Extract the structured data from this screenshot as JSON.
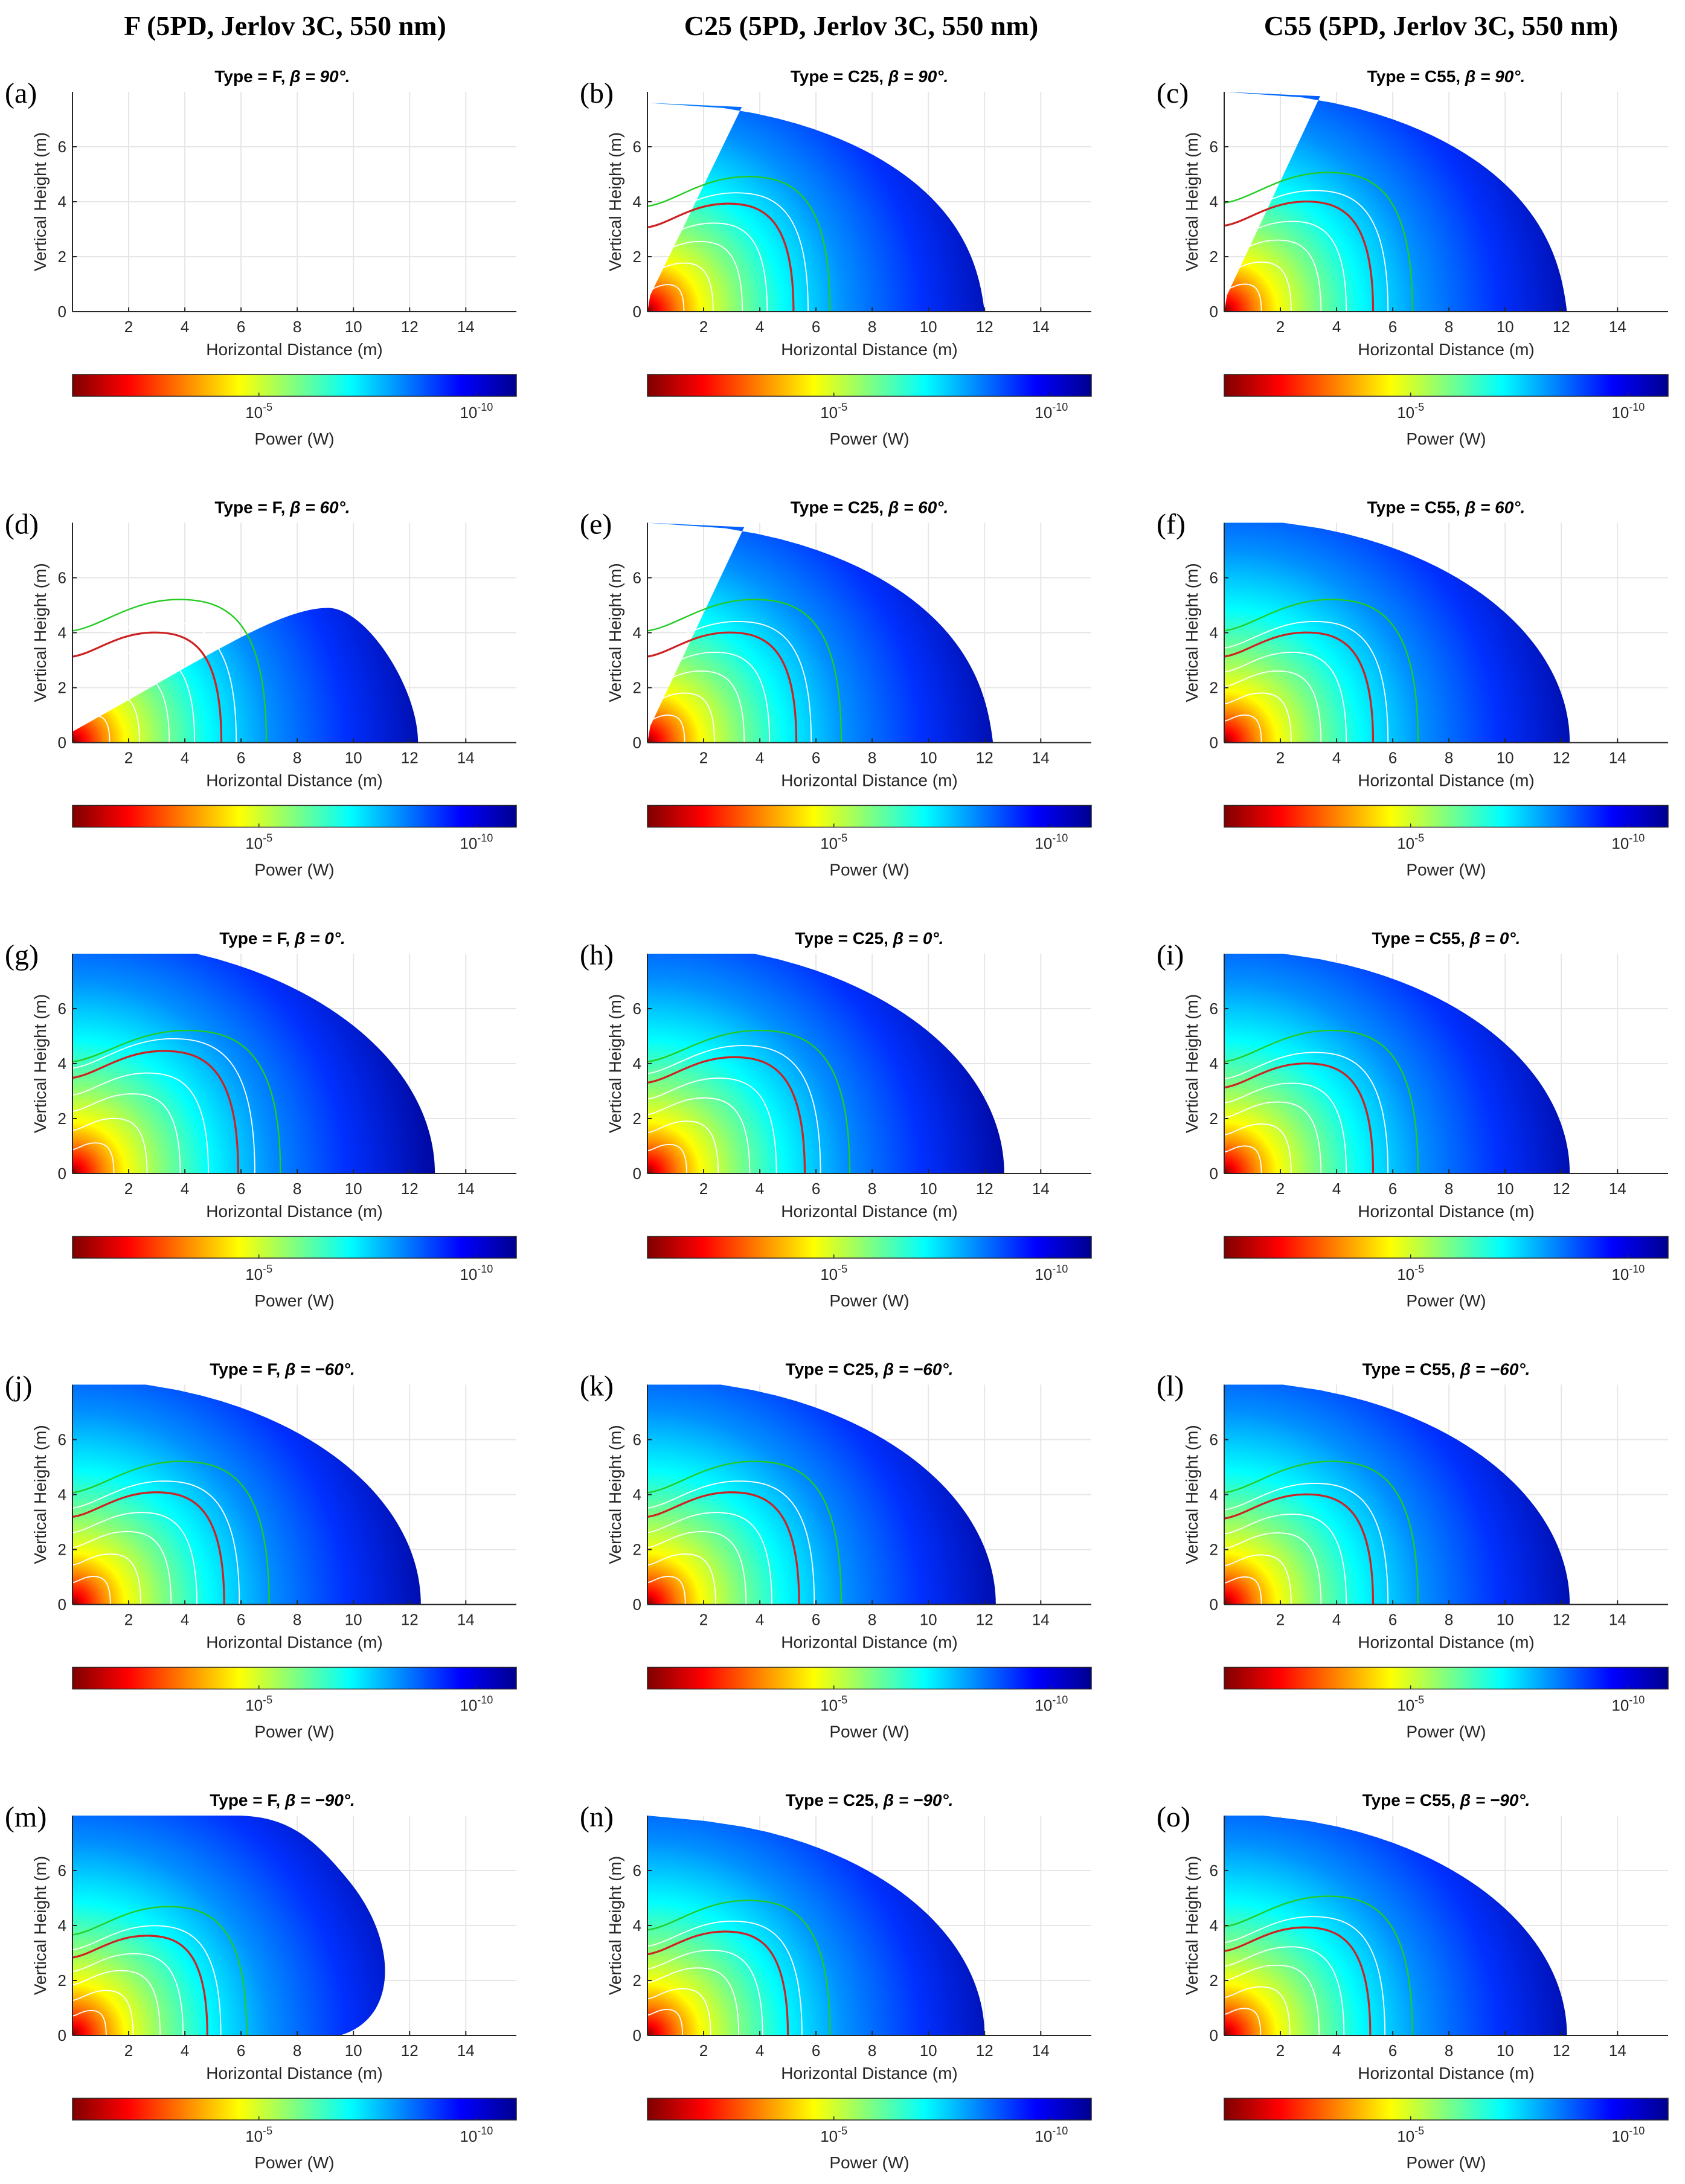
{
  "figure": {
    "columns": [
      {
        "title": "F (5PD, Jerlov 3C, 550 nm)"
      },
      {
        "title": "C25 (5PD, Jerlov 3C, 550 nm)"
      },
      {
        "title": "C55 (5PD, Jerlov 3C, 550 nm)"
      }
    ]
  },
  "colors": {
    "colormap": [
      "#7f0000",
      "#ff0000",
      "#ff8000",
      "#ffff00",
      "#80ff80",
      "#00ffff",
      "#0080ff",
      "#0000ff",
      "#00008f"
    ],
    "contour_green": "#22cc22",
    "contour_red": "#cc2222",
    "contour_white": "#ffffff",
    "grid": "#e6e6e6",
    "axis": "#262626"
  },
  "chart_data": [
    {
      "id": "a",
      "label": "(a)",
      "type": "heatmap",
      "title": "Type = F, β = 90°.",
      "title_prefix": "Type = F, ",
      "title_beta": "β = 90°.",
      "sensor": "F",
      "beta_deg": 90,
      "xlabel": "Horizontal Distance (m)",
      "ylabel": "Vertical Height (m)",
      "xlim": [
        0,
        15.8
      ],
      "ylim": [
        0,
        8
      ],
      "xticks": [
        "2",
        "4",
        "6",
        "8",
        "10",
        "12",
        "14"
      ],
      "yticks": [
        "0",
        "2",
        "4",
        "6"
      ],
      "colorbar_label": "Power (W)",
      "colorbar_ticks": [
        "10",
        "10"
      ],
      "colorbar_exps": [
        "-5",
        "-10"
      ],
      "coverage": "none",
      "reach_m": 0,
      "contours": {
        "green": 0,
        "red": 0
      }
    },
    {
      "id": "b",
      "label": "(b)",
      "type": "heatmap",
      "title": "Type = C25, β = 90°.",
      "title_prefix": "Type = C25, ",
      "title_beta": "β = 90°.",
      "sensor": "C25",
      "beta_deg": 90,
      "xlabel": "Horizontal Distance (m)",
      "ylabel": "Vertical Height (m)",
      "xlim": [
        0,
        15.8
      ],
      "ylim": [
        0,
        8
      ],
      "xticks": [
        "2",
        "4",
        "6",
        "8",
        "10",
        "12",
        "14"
      ],
      "yticks": [
        "0",
        "2",
        "4",
        "6"
      ],
      "colorbar_label": "Power (W)",
      "colorbar_ticks": [
        "10",
        "10"
      ],
      "colorbar_exps": [
        "-5",
        "-10"
      ],
      "coverage": "upper",
      "reach_m": 12.0,
      "max_height_m": 7.6,
      "contours": {
        "green": 6.5,
        "red": 5.2
      }
    },
    {
      "id": "c",
      "label": "(c)",
      "type": "heatmap",
      "title": "Type = C55, β = 90°.",
      "title_prefix": "Type = C55, ",
      "title_beta": "β = 90°.",
      "sensor": "C55",
      "beta_deg": 90,
      "xlabel": "Horizontal Distance (m)",
      "ylabel": "Vertical Height (m)",
      "xlim": [
        0,
        15.8
      ],
      "ylim": [
        0,
        8
      ],
      "xticks": [
        "2",
        "4",
        "6",
        "8",
        "10",
        "12",
        "14"
      ],
      "yticks": [
        "0",
        "2",
        "4",
        "6"
      ],
      "colorbar_label": "Power (W)",
      "colorbar_ticks": [
        "10",
        "10"
      ],
      "colorbar_exps": [
        "-5",
        "-10"
      ],
      "coverage": "upper",
      "reach_m": 12.2,
      "max_height_m": 8.0,
      "contours": {
        "green": 6.7,
        "red": 5.3
      }
    },
    {
      "id": "d",
      "label": "(d)",
      "type": "heatmap",
      "title": "Type = F, β = 60°.",
      "title_prefix": "Type = F, ",
      "title_beta": "β = 60°.",
      "sensor": "F",
      "beta_deg": 60,
      "xlabel": "Horizontal Distance (m)",
      "ylabel": "Vertical Height (m)",
      "xlim": [
        0,
        15.8
      ],
      "ylim": [
        0,
        8
      ],
      "xticks": [
        "2",
        "4",
        "6",
        "8",
        "10",
        "12",
        "14"
      ],
      "yticks": [
        "0",
        "2",
        "4",
        "6"
      ],
      "colorbar_label": "Power (W)",
      "colorbar_ticks": [
        "10",
        "10"
      ],
      "colorbar_exps": [
        "-5",
        "-10"
      ],
      "coverage": "wedge",
      "reach_m": 12.3,
      "max_height_m": 4.9,
      "contours": {
        "green": 6.9,
        "red": 5.3
      }
    },
    {
      "id": "e",
      "label": "(e)",
      "type": "heatmap",
      "title": "Type = C25, β = 60°.",
      "title_prefix": "Type = C25, ",
      "title_beta": "β = 60°.",
      "sensor": "C25",
      "beta_deg": 60,
      "xlabel": "Horizontal Distance (m)",
      "ylabel": "Vertical Height (m)",
      "xlim": [
        0,
        15.8
      ],
      "ylim": [
        0,
        8
      ],
      "xticks": [
        "2",
        "4",
        "6",
        "8",
        "10",
        "12",
        "14"
      ],
      "yticks": [
        "0",
        "2",
        "4",
        "6"
      ],
      "colorbar_label": "Power (W)",
      "colorbar_ticks": [
        "10",
        "10"
      ],
      "colorbar_exps": [
        "-5",
        "-10"
      ],
      "coverage": "upper",
      "reach_m": 12.3,
      "max_height_m": 8.0,
      "contours": {
        "green": 6.9,
        "red": 5.3
      }
    },
    {
      "id": "f",
      "label": "(f)",
      "type": "heatmap",
      "title": "Type = C55, β = 60°.",
      "title_prefix": "Type = C55, ",
      "title_beta": "β = 60°.",
      "sensor": "C55",
      "beta_deg": 60,
      "xlabel": "Horizontal Distance (m)",
      "ylabel": "Vertical Height (m)",
      "xlim": [
        0,
        15.8
      ],
      "ylim": [
        0,
        8
      ],
      "xticks": [
        "2",
        "4",
        "6",
        "8",
        "10",
        "12",
        "14"
      ],
      "yticks": [
        "0",
        "2",
        "4",
        "6"
      ],
      "colorbar_label": "Power (W)",
      "colorbar_ticks": [
        "10",
        "10"
      ],
      "colorbar_exps": [
        "-5",
        "-10"
      ],
      "coverage": "full",
      "reach_m": 12.3,
      "max_height_m": 8.0,
      "contours": {
        "green": 6.9,
        "red": 5.3
      }
    },
    {
      "id": "g",
      "label": "(g)",
      "type": "heatmap",
      "title": "Type = F, β = 0°.",
      "title_prefix": "Type = F, ",
      "title_beta": "β = 0°.",
      "sensor": "F",
      "beta_deg": 0,
      "xlabel": "Horizontal Distance (m)",
      "ylabel": "Vertical Height (m)",
      "xlim": [
        0,
        15.8
      ],
      "ylim": [
        0,
        8
      ],
      "xticks": [
        "2",
        "4",
        "6",
        "8",
        "10",
        "12",
        "14"
      ],
      "yticks": [
        "0",
        "2",
        "4",
        "6"
      ],
      "colorbar_label": "Power (W)",
      "colorbar_ticks": [
        "10",
        "10"
      ],
      "colorbar_exps": [
        "-5",
        "-10"
      ],
      "coverage": "full",
      "reach_m": 12.9,
      "max_height_m": 8.0,
      "contours": {
        "green": 7.4,
        "red": 5.9
      }
    },
    {
      "id": "h",
      "label": "(h)",
      "type": "heatmap",
      "title": "Type = C25, β = 0°.",
      "title_prefix": "Type = C25, ",
      "title_beta": "β = 0°.",
      "sensor": "C25",
      "beta_deg": 0,
      "xlabel": "Horizontal Distance (m)",
      "ylabel": "Vertical Height (m)",
      "xlim": [
        0,
        15.8
      ],
      "ylim": [
        0,
        8
      ],
      "xticks": [
        "2",
        "4",
        "6",
        "8",
        "10",
        "12",
        "14"
      ],
      "yticks": [
        "0",
        "2",
        "4",
        "6"
      ],
      "colorbar_label": "Power (W)",
      "colorbar_ticks": [
        "10",
        "10"
      ],
      "colorbar_exps": [
        "-5",
        "-10"
      ],
      "coverage": "full",
      "reach_m": 12.7,
      "max_height_m": 8.0,
      "contours": {
        "green": 7.2,
        "red": 5.6
      }
    },
    {
      "id": "i",
      "label": "(i)",
      "type": "heatmap",
      "title": "Type = C55, β = 0°.",
      "title_prefix": "Type = C55, ",
      "title_beta": "β = 0°.",
      "sensor": "C55",
      "beta_deg": 0,
      "xlabel": "Horizontal Distance (m)",
      "ylabel": "Vertical Height (m)",
      "xlim": [
        0,
        15.8
      ],
      "ylim": [
        0,
        8
      ],
      "xticks": [
        "2",
        "4",
        "6",
        "8",
        "10",
        "12",
        "14"
      ],
      "yticks": [
        "0",
        "2",
        "4",
        "6"
      ],
      "colorbar_label": "Power (W)",
      "colorbar_ticks": [
        "10",
        "10"
      ],
      "colorbar_exps": [
        "-5",
        "-10"
      ],
      "coverage": "full",
      "reach_m": 12.3,
      "max_height_m": 8.0,
      "contours": {
        "green": 6.9,
        "red": 5.3
      }
    },
    {
      "id": "j",
      "label": "(j)",
      "type": "heatmap",
      "title": "Type = F, β = −60°.",
      "title_prefix": "Type = F, ",
      "title_beta": "β = −60°.",
      "sensor": "F",
      "beta_deg": -60,
      "xlabel": "Horizontal Distance (m)",
      "ylabel": "Vertical Height (m)",
      "xlim": [
        0,
        15.8
      ],
      "ylim": [
        0,
        8
      ],
      "xticks": [
        "2",
        "4",
        "6",
        "8",
        "10",
        "12",
        "14"
      ],
      "yticks": [
        "0",
        "2",
        "4",
        "6"
      ],
      "colorbar_label": "Power (W)",
      "colorbar_ticks": [
        "10",
        "10"
      ],
      "colorbar_exps": [
        "-5",
        "-10"
      ],
      "coverage": "full",
      "reach_m": 12.4,
      "max_height_m": 8.0,
      "contours": {
        "green": 7.0,
        "red": 5.4
      }
    },
    {
      "id": "k",
      "label": "(k)",
      "type": "heatmap",
      "title": "Type = C25, β = −60°.",
      "title_prefix": "Type = C25, ",
      "title_beta": "β = −60°.",
      "sensor": "C25",
      "beta_deg": -60,
      "xlabel": "Horizontal Distance (m)",
      "ylabel": "Vertical Height (m)",
      "xlim": [
        0,
        15.8
      ],
      "ylim": [
        0,
        8
      ],
      "xticks": [
        "2",
        "4",
        "6",
        "8",
        "10",
        "12",
        "14"
      ],
      "yticks": [
        "0",
        "2",
        "4",
        "6"
      ],
      "colorbar_label": "Power (W)",
      "colorbar_ticks": [
        "10",
        "10"
      ],
      "colorbar_exps": [
        "-5",
        "-10"
      ],
      "coverage": "full",
      "reach_m": 12.4,
      "max_height_m": 8.0,
      "contours": {
        "green": 6.9,
        "red": 5.4
      }
    },
    {
      "id": "l",
      "label": "(l)",
      "type": "heatmap",
      "title": "Type = C55, β = −60°.",
      "title_prefix": "Type = C55, ",
      "title_beta": "β = −60°.",
      "sensor": "C55",
      "beta_deg": -60,
      "xlabel": "Horizontal Distance (m)",
      "ylabel": "Vertical Height (m)",
      "xlim": [
        0,
        15.8
      ],
      "ylim": [
        0,
        8
      ],
      "xticks": [
        "2",
        "4",
        "6",
        "8",
        "10",
        "12",
        "14"
      ],
      "yticks": [
        "0",
        "2",
        "4",
        "6"
      ],
      "colorbar_label": "Power (W)",
      "colorbar_ticks": [
        "10",
        "10"
      ],
      "colorbar_exps": [
        "-5",
        "-10"
      ],
      "coverage": "full",
      "reach_m": 12.3,
      "max_height_m": 8.0,
      "contours": {
        "green": 6.9,
        "red": 5.3
      }
    },
    {
      "id": "m",
      "label": "(m)",
      "type": "heatmap",
      "title": "Type = F, β = −90°.",
      "title_prefix": "Type = F, ",
      "title_beta": "β = −90°.",
      "sensor": "F",
      "beta_deg": -90,
      "xlabel": "Horizontal Distance (m)",
      "ylabel": "Vertical Height (m)",
      "xlim": [
        0,
        15.8
      ],
      "ylim": [
        0,
        8
      ],
      "xticks": [
        "2",
        "4",
        "6",
        "8",
        "10",
        "12",
        "14"
      ],
      "yticks": [
        "0",
        "2",
        "4",
        "6"
      ],
      "colorbar_label": "Power (W)",
      "colorbar_ticks": [
        "10",
        "10"
      ],
      "colorbar_exps": [
        "-5",
        "-10"
      ],
      "coverage": "lower",
      "reach_m": 11.6,
      "max_height_m": 8.0,
      "contours": {
        "green": 6.2,
        "red": 4.8
      }
    },
    {
      "id": "n",
      "label": "(n)",
      "type": "heatmap",
      "title": "Type = C25, β = −90°.",
      "title_prefix": "Type = C25, ",
      "title_beta": "β = −90°.",
      "sensor": "C25",
      "beta_deg": -90,
      "xlabel": "Horizontal Distance (m)",
      "ylabel": "Vertical Height (m)",
      "xlim": [
        0,
        15.8
      ],
      "ylim": [
        0,
        8
      ],
      "xticks": [
        "2",
        "4",
        "6",
        "8",
        "10",
        "12",
        "14"
      ],
      "yticks": [
        "0",
        "2",
        "4",
        "6"
      ],
      "colorbar_label": "Power (W)",
      "colorbar_ticks": [
        "10",
        "10"
      ],
      "colorbar_exps": [
        "-5",
        "-10"
      ],
      "coverage": "full",
      "reach_m": 12.0,
      "max_height_m": 8.0,
      "contours": {
        "green": 6.5,
        "red": 5.0
      }
    },
    {
      "id": "o",
      "label": "(o)",
      "type": "heatmap",
      "title": "Type = C55, β = −90°.",
      "title_prefix": "Type = C55, ",
      "title_beta": "β = −90°.",
      "sensor": "C55",
      "beta_deg": -90,
      "xlabel": "Horizontal Distance (m)",
      "ylabel": "Vertical Height (m)",
      "xlim": [
        0,
        15.8
      ],
      "ylim": [
        0,
        8
      ],
      "xticks": [
        "2",
        "4",
        "6",
        "8",
        "10",
        "12",
        "14"
      ],
      "yticks": [
        "0",
        "2",
        "4",
        "6"
      ],
      "colorbar_label": "Power (W)",
      "colorbar_ticks": [
        "10",
        "10"
      ],
      "colorbar_exps": [
        "-5",
        "-10"
      ],
      "coverage": "full",
      "reach_m": 12.2,
      "max_height_m": 8.0,
      "contours": {
        "green": 6.7,
        "red": 5.2
      }
    }
  ]
}
